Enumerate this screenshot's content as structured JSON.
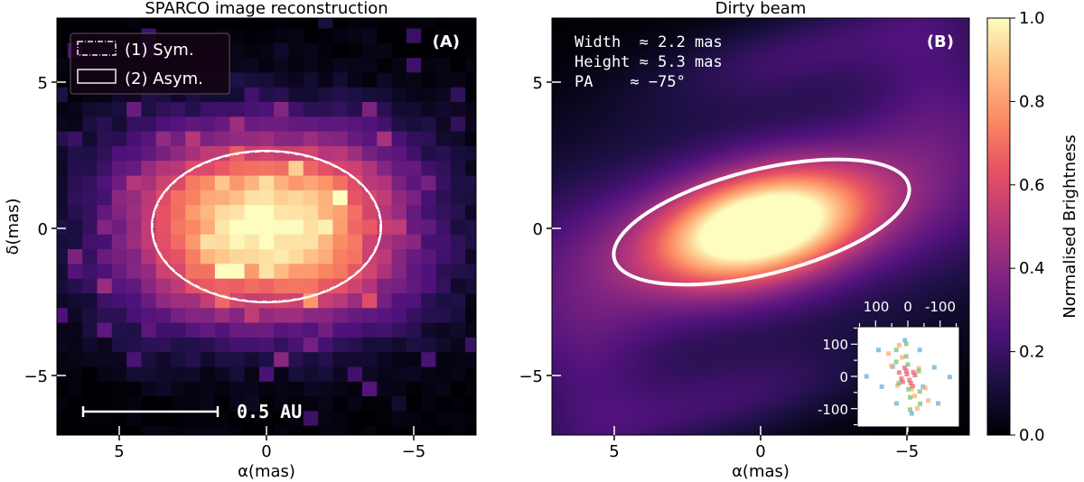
{
  "chart_data": [
    {
      "type": "heatmap",
      "panel": "(A)",
      "title": "SPARCO image reconstruction",
      "xlabel": "α(mas)",
      "ylabel": "δ(mas)",
      "xlim": [
        7.1,
        -7.1
      ],
      "ylim": [
        -7.1,
        7.1
      ],
      "xticks": [
        "5",
        "0",
        "−5"
      ],
      "yticks": [
        "5",
        "0",
        "−5"
      ],
      "colormap": "magma",
      "legend": {
        "placement": "top-left",
        "entries": [
          "(1) Sym.",
          "(2) Asym."
        ]
      },
      "scale_bar": "0.5 AU",
      "ellipse": {
        "center": [
          0,
          0
        ],
        "width_mas": 7.8,
        "height_mas": 5.2
      }
    },
    {
      "type": "heatmap",
      "panel": "(B)",
      "title": "Dirty beam",
      "xlabel": "α(mas)",
      "xlim": [
        7.1,
        -7.1
      ],
      "ylim": [
        -7.1,
        7.1
      ],
      "xticks": [
        "5",
        "0",
        "−5"
      ],
      "yticks": [
        "5",
        "0",
        "−5"
      ],
      "colormap": "magma",
      "annotations": [
        "Width  ≈ 2.2 mas",
        "Height ≈ 5.3 mas",
        "PA    ≈ −75°"
      ],
      "colorbar": {
        "label": "Normalised Brightness",
        "range": [
          0,
          1
        ],
        "ticks": [
          "0.0",
          "0.2",
          "0.4",
          "0.6",
          "0.8",
          "1.0"
        ]
      }
    },
    {
      "type": "scatter",
      "panel": "inset uv coverage",
      "xlim": [
        157,
        -160
      ],
      "ylim": [
        -155,
        153
      ],
      "xticks": [
        "100",
        "0",
        "-100"
      ],
      "yticks": [
        "100",
        "0",
        "-100"
      ],
      "series": [
        {
          "color": "#6baed6",
          "points": [
            [
              9,
              112
            ],
            [
              91,
              82
            ],
            [
              -37,
              82
            ],
            [
              47,
              30
            ],
            [
              -82,
              28
            ],
            [
              128,
              0
            ],
            [
              -130,
              -2
            ],
            [
              81,
              -32
            ],
            [
              -47,
              -32
            ],
            [
              35,
              -84
            ],
            [
              -94,
              -84
            ],
            [
              -12,
              -115
            ]
          ]
        },
        {
          "color": "#fdae6b",
          "points": [
            [
              27,
              97
            ],
            [
              60,
              71
            ],
            [
              18,
              59
            ],
            [
              51,
              33
            ],
            [
              -34,
              25
            ],
            [
              32,
              -28
            ],
            [
              -12,
              -39
            ],
            [
              -54,
              -36
            ],
            [
              -21,
              -61
            ],
            [
              -63,
              -75
            ],
            [
              -29,
              -99
            ]
          ]
        },
        {
          "color": "#74c476",
          "points": [
            [
              5,
              101
            ],
            [
              36,
              82
            ],
            [
              5,
              62
            ],
            [
              36,
              45
            ],
            [
              0,
              37
            ],
            [
              -34,
              17
            ],
            [
              28,
              -21
            ],
            [
              -2,
              -40
            ],
            [
              -37,
              -47
            ],
            [
              -7,
              -65
            ],
            [
              -38,
              -85
            ],
            [
              -7,
              -103
            ]
          ]
        },
        {
          "color": "#e8656f",
          "points": [
            [
              10,
              27
            ],
            [
              5,
              17
            ],
            [
              27,
              12
            ],
            [
              -17,
              13
            ],
            [
              3,
              7
            ],
            [
              -22,
              4
            ],
            [
              20,
              -7
            ],
            [
              -5,
              -11
            ],
            [
              16,
              -17
            ],
            [
              -9,
              -21
            ],
            [
              -15,
              -30
            ]
          ]
        }
      ]
    }
  ]
}
